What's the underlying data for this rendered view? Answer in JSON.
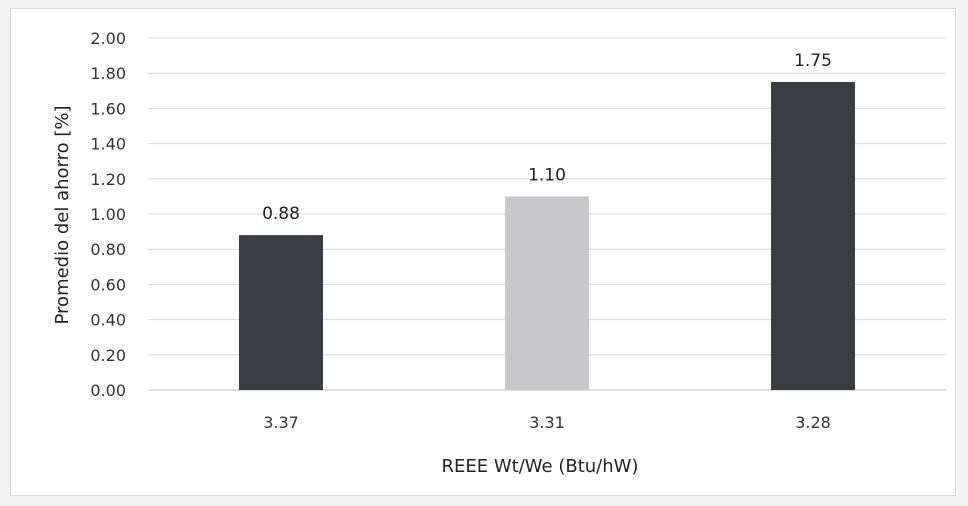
{
  "chart_data": {
    "type": "bar",
    "categories": [
      "3.37",
      "3.31",
      "3.28"
    ],
    "values": [
      0.88,
      1.1,
      1.75
    ],
    "data_labels": [
      "0.88",
      "1.10",
      "1.75"
    ],
    "bar_colors": [
      "#3a3d42",
      "#c8c8ca",
      "#3a3d42"
    ],
    "xlabel": "REEE Wt/We (Btu/hW)",
    "ylabel": "Promedio del ahorro  [%]",
    "ylim": [
      0,
      2.0
    ],
    "yticks": [
      "0.00",
      "0.20",
      "0.40",
      "0.60",
      "0.80",
      "1.00",
      "1.20",
      "1.40",
      "1.60",
      "1.80",
      "2.00"
    ],
    "grid": true,
    "legend": "none"
  }
}
